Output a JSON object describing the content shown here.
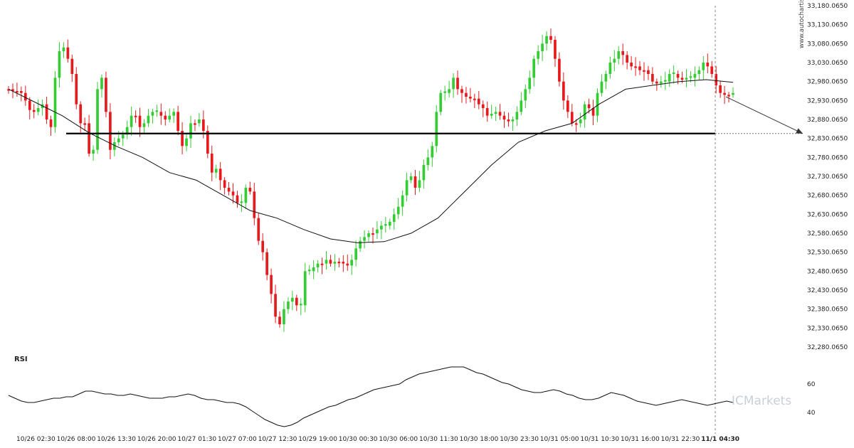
{
  "chart_data": {
    "type": "candlestick",
    "timeframe": "intraday",
    "watermark": "www.autochartist.com",
    "brand": "ICMarkets",
    "rsi_label": "RSI",
    "ylim": [
      32280.065,
      33180.065
    ],
    "y_ticks": [
      "33,180.0650",
      "33,130.0650",
      "33,080.0650",
      "33,030.0650",
      "32,980.0650",
      "32,930.0650",
      "32,880.0650",
      "32,830.0650",
      "32,780.0650",
      "32,730.0650",
      "32,680.0650",
      "32,630.0650",
      "32,580.0650",
      "32,530.0650",
      "32,480.0650",
      "32,430.0650",
      "32,380.0650",
      "32,330.0650",
      "32,280.0650"
    ],
    "rsi_ticks": [
      "60",
      "40"
    ],
    "x_ticks": [
      "10/26 02:30",
      "10/26 08:00",
      "10/26 13:30",
      "10/26 20:00",
      "10/27 01:30",
      "10/27 07:00",
      "10/27 12:30",
      "10/29 19:00",
      "10/30 00:30",
      "10/30 06:00",
      "10/30 11:30",
      "10/30 18:00",
      "10/30 23:30",
      "10/31 05:00",
      "10/31 10:30",
      "10/31 16:00",
      "10/31 22:30",
      "11/1 04:30"
    ],
    "support_level": 32843,
    "forecast": {
      "from": 32940,
      "to": 32843
    },
    "colors": {
      "up": "#33cc33",
      "down": "#e8191c",
      "ma": "#111111",
      "support": "#000000",
      "rsi": "#111111"
    },
    "moving_average": [
      32960,
      32925,
      32890,
      32845,
      32810,
      32780,
      32740,
      32720,
      32680,
      32640,
      32620,
      32590,
      32565,
      32555,
      32558,
      32580,
      32620,
      32690,
      32760,
      32820,
      32850,
      32870,
      32920,
      32960,
      32970,
      32980,
      32985,
      32978
    ],
    "price_path": [
      32960,
      32955,
      32955,
      32950,
      32930,
      32905,
      32900,
      32910,
      32920,
      32880,
      32860,
      32990,
      33060,
      33070,
      33040,
      33000,
      32920,
      32870,
      32870,
      32790,
      32800,
      32960,
      32990,
      32900,
      32800,
      32820,
      32830,
      32840,
      32860,
      32890,
      32890,
      32860,
      32870,
      32890,
      32900,
      32900,
      32890,
      32880,
      32890,
      32900,
      32850,
      32810,
      32830,
      32870,
      32870,
      32880,
      32850,
      32790,
      32740,
      32750,
      32720,
      32700,
      32690,
      32680,
      32660,
      32660,
      32700,
      32690,
      32620,
      32560,
      32530,
      32470,
      32420,
      32360,
      32340,
      32380,
      32400,
      32410,
      32390,
      32390,
      32480,
      32480,
      32490,
      32500,
      32500,
      32510,
      32500,
      32505,
      32505,
      32500,
      32495,
      32510,
      32540,
      32560,
      32570,
      32580,
      32580,
      32590,
      32600,
      32600,
      32610,
      32630,
      32650,
      32680,
      32720,
      32730,
      32700,
      32720,
      32760,
      32780,
      32810,
      32900,
      32950,
      32950,
      32960,
      32990,
      32960,
      32950,
      32940,
      32935,
      32935,
      32920,
      32910,
      32890,
      32895,
      32900,
      32890,
      32880,
      32875,
      32880,
      32900,
      32930,
      32960,
      32990,
      33040,
      33060,
      33080,
      33100,
      33090,
      33040,
      32980,
      32930,
      32900,
      32870,
      32870,
      32880,
      32920,
      32910,
      32890,
      32950,
      32980,
      33000,
      33030,
      33040,
      33060,
      33050,
      33030,
      33020,
      33020,
      33010,
      33010,
      33000,
      32980,
      32975,
      32980,
      32980,
      33000,
      33000,
      32990,
      32985,
      32990,
      32990,
      33000,
      33010,
      33030,
      33020,
      33000,
      32970,
      32950,
      32945,
      32945,
      32950
    ],
    "rsi_values": [
      52,
      50,
      48,
      47,
      47,
      48,
      49,
      50,
      50,
      51,
      51,
      53,
      55,
      55,
      54,
      53,
      53,
      52,
      52,
      53,
      52,
      51,
      50,
      50,
      50,
      51,
      51,
      52,
      53,
      52,
      50,
      49,
      49,
      48,
      47,
      47,
      46,
      44,
      41,
      38,
      35,
      33,
      31,
      30,
      31,
      33,
      36,
      38,
      40,
      42,
      44,
      45,
      47,
      49,
      50,
      52,
      54,
      56,
      57,
      58,
      59,
      60,
      63,
      65,
      67,
      68,
      69,
      70,
      71,
      72,
      72,
      72,
      70,
      68,
      67,
      65,
      63,
      61,
      60,
      58,
      56,
      55,
      54,
      54,
      55,
      56,
      55,
      53,
      52,
      50,
      49,
      49,
      50,
      52,
      54,
      53,
      52,
      50,
      48,
      47,
      46,
      45,
      46,
      47,
      48,
      49,
      48,
      47,
      46,
      45,
      46,
      47,
      48,
      47
    ]
  }
}
